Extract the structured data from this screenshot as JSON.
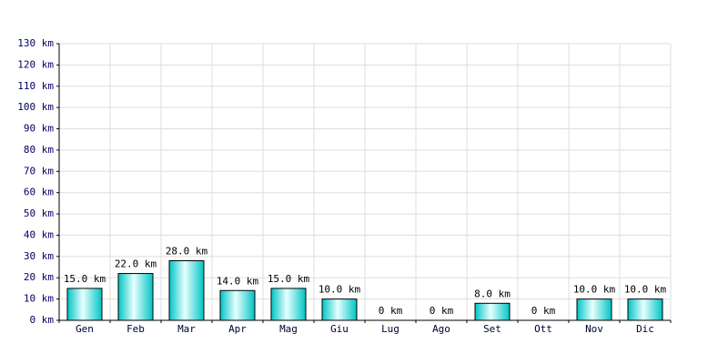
{
  "chart_data": {
    "type": "bar",
    "categories": [
      "Gen",
      "Feb",
      "Mar",
      "Apr",
      "Mag",
      "Giu",
      "Lug",
      "Ago",
      "Set",
      "Ott",
      "Nov",
      "Dic"
    ],
    "values": [
      15,
      22,
      28,
      14,
      15,
      10,
      0,
      0,
      8,
      0,
      10,
      10
    ],
    "value_labels": [
      "15.0 km",
      "22.0 km",
      "28.0 km",
      "14.0 km",
      "15.0 km",
      "10.0 km",
      "0 km",
      "0 km",
      "8.0 km",
      "0 km",
      "10.0 km",
      "10.0 km"
    ],
    "color": "#00c4c4",
    "ylim": [
      0,
      130
    ],
    "yticks": [
      {
        "value": 0,
        "label": "0 km"
      },
      {
        "value": 10,
        "label": "10 km"
      },
      {
        "value": 20,
        "label": "20 km"
      },
      {
        "value": 30,
        "label": "30 km"
      },
      {
        "value": 40,
        "label": "40 km"
      },
      {
        "value": 50,
        "label": "50 km"
      },
      {
        "value": 60,
        "label": "60 km"
      },
      {
        "value": 70,
        "label": "70 km"
      },
      {
        "value": 80,
        "label": "80 km"
      },
      {
        "value": 90,
        "label": "90 km"
      },
      {
        "value": 100,
        "label": "100 km"
      },
      {
        "value": 110,
        "label": "110 km"
      },
      {
        "value": 120,
        "label": "120 km"
      },
      {
        "value": 130,
        "label": "130 km"
      }
    ],
    "grid": true
  }
}
